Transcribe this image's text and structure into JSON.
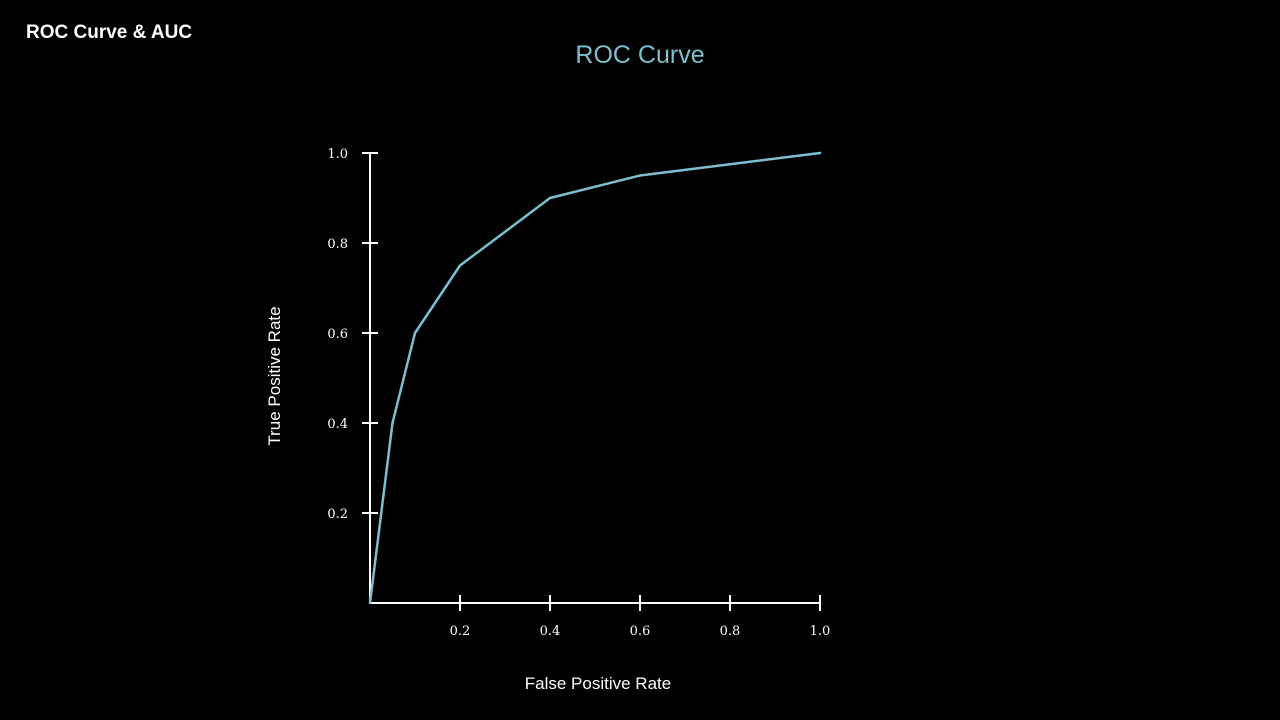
{
  "page": {
    "heading": "ROC Curve & AUC"
  },
  "colors": {
    "background": "#000000",
    "axis": "#ffffff",
    "text": "#ffffff",
    "accent": "#7bbfd1"
  },
  "chart_data": {
    "type": "line",
    "title": "ROC Curve",
    "xlabel": "False Positive Rate",
    "ylabel": "True Positive Rate",
    "xlim": [
      0,
      1
    ],
    "ylim": [
      0,
      1
    ],
    "x_ticks": [
      "0.2",
      "0.4",
      "0.6",
      "0.8",
      "1.0"
    ],
    "y_ticks": [
      "0.2",
      "0.4",
      "0.6",
      "0.8",
      "1.0"
    ],
    "grid": false,
    "series": [
      {
        "x": [
          0.0,
          0.05,
          0.1,
          0.2,
          0.4,
          0.6,
          1.0
        ],
        "y": [
          0.0,
          0.4,
          0.6,
          0.75,
          0.9,
          0.95,
          1.0
        ]
      }
    ]
  }
}
